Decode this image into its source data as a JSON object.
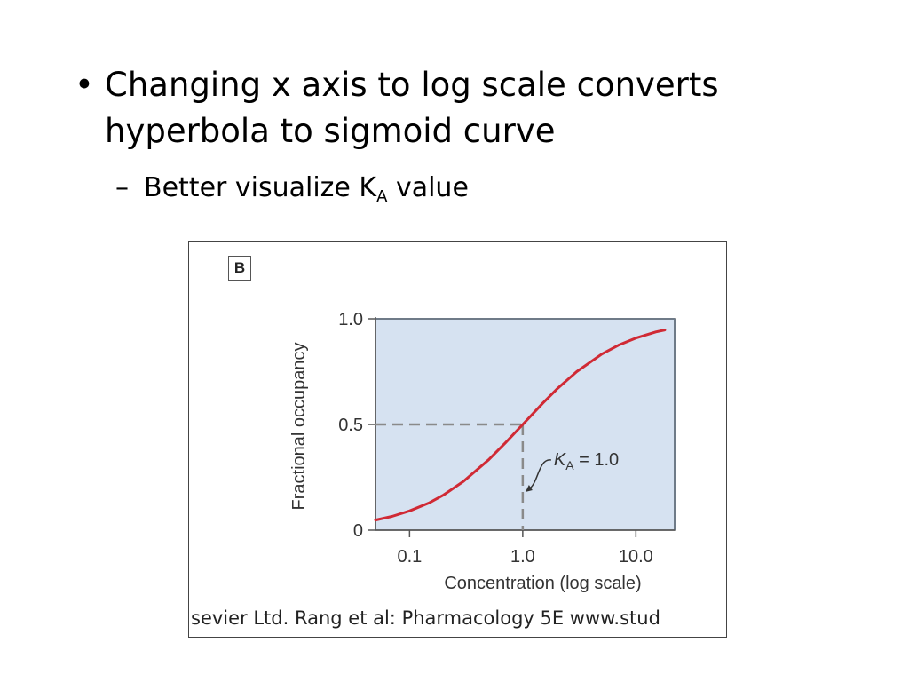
{
  "slide": {
    "bullet1": {
      "marker": "•",
      "text": "Changing x axis to log scale converts hyperbola to sigmoid curve"
    },
    "bullet2": {
      "marker": "–",
      "text_before": "Better visualize K",
      "subscript": "A",
      "text_after": " value"
    }
  },
  "figure": {
    "panel_label": "B",
    "credit": "sevier Ltd. Rang et al: Pharmacology 5E www.stud"
  },
  "chart_data": {
    "type": "line",
    "x_scale": "log",
    "xlabel": "Concentration (log scale)",
    "ylabel": "Fractional occupancy",
    "xlim": [
      0.05,
      22
    ],
    "ylim": [
      0,
      1.0
    ],
    "x_ticks": [
      0.1,
      1.0,
      10.0
    ],
    "x_tick_labels": [
      "0.1",
      "1.0",
      "10.0"
    ],
    "y_ticks": [
      0,
      0.5,
      1.0
    ],
    "y_tick_labels": [
      "0",
      "0.5",
      "1.0"
    ],
    "grid": false,
    "series": [
      {
        "x": [
          0.05,
          0.07,
          0.1,
          0.15,
          0.2,
          0.3,
          0.5,
          0.7,
          1.0,
          1.5,
          2,
          3,
          5,
          7,
          10,
          15,
          18
        ],
        "y": [
          0.048,
          0.065,
          0.091,
          0.13,
          0.167,
          0.231,
          0.333,
          0.412,
          0.5,
          0.6,
          0.667,
          0.75,
          0.833,
          0.875,
          0.909,
          0.938,
          0.947
        ]
      }
    ],
    "reference_lines": {
      "x": 1.0,
      "y": 0.5,
      "style": "dashed"
    },
    "annotation": {
      "k": "K",
      "sub": "A",
      "rest": " = 1.0"
    },
    "colors": {
      "curve": "#d02a35",
      "plot_background": "#d6e2f1",
      "reference": "#8a8a8a",
      "axis": "#555555",
      "text": "#333333"
    }
  }
}
